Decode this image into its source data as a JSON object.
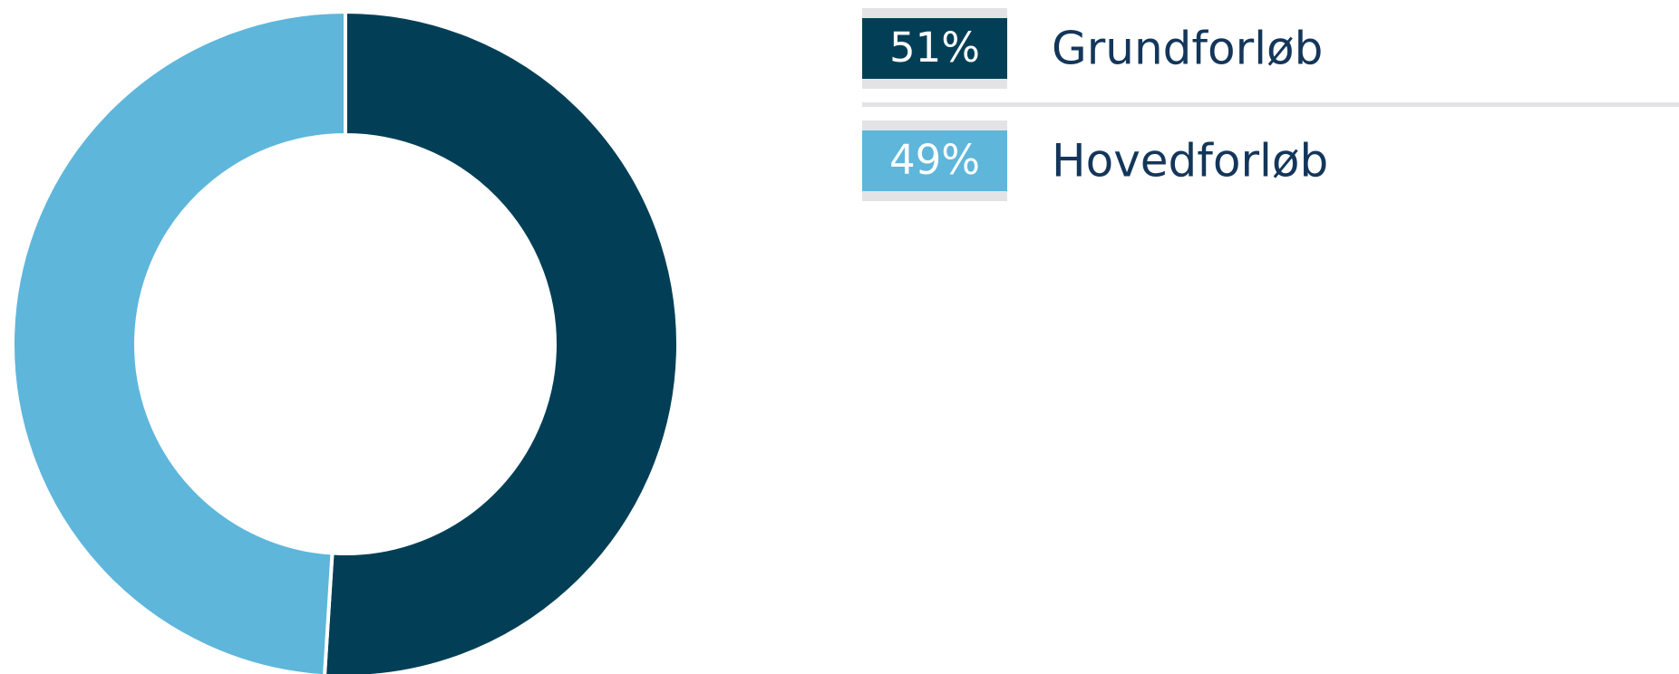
{
  "chart_data": {
    "type": "donut",
    "categories": [
      "Grundforløb",
      "Hovedforløb"
    ],
    "values": [
      51,
      49
    ],
    "value_labels": [
      "51%",
      "49%"
    ],
    "colors": [
      "#023f57",
      "#5eb6db"
    ]
  }
}
